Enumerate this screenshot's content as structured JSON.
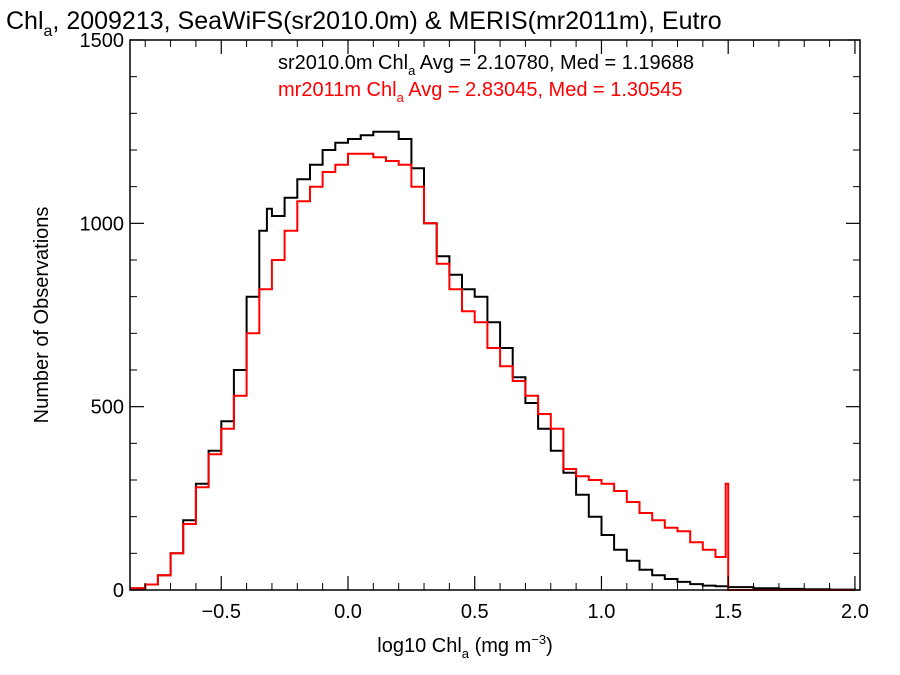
{
  "chart_data": {
    "type": "line",
    "title": {
      "pre": "Chl",
      "sub": "a",
      "post": ", 2009213, SeaWiFS(sr2010.0m) & MERIS(mr2011m), Eutro"
    },
    "xlabel": {
      "pre": "log10 Chl",
      "sub": "a",
      "mid": " (mg m",
      "sup": "−3",
      "post": ")"
    },
    "ylabel": "Number of Observations",
    "xlim": [
      -0.86,
      2.02
    ],
    "ylim": [
      0,
      1500
    ],
    "x_ticks": [
      {
        "value": -0.5,
        "label": "−0.5"
      },
      {
        "value": 0.0,
        "label": "0.0"
      },
      {
        "value": 0.5,
        "label": "0.5"
      },
      {
        "value": 1.0,
        "label": "1.0"
      },
      {
        "value": 1.5,
        "label": "1.5"
      },
      {
        "value": 2.0,
        "label": "2.0"
      }
    ],
    "y_ticks": [
      {
        "value": 0,
        "label": "0"
      },
      {
        "value": 500,
        "label": "500"
      },
      {
        "value": 1000,
        "label": "1000"
      },
      {
        "value": 1500,
        "label": "1500"
      }
    ],
    "grid": false,
    "legend": "top-right (text annotations)",
    "annotations": [
      {
        "color": "#000000",
        "pre": "sr2010.0m Chl",
        "sub": "a",
        "post": " Avg = 2.10780, Med = 1.19688"
      },
      {
        "color": "#ff0000",
        "pre": "mr2011m Chl",
        "sub": "a",
        "post": " Avg = 2.83045, Med = 1.30545"
      }
    ],
    "series": [
      {
        "color": "#000000",
        "style": "step",
        "x": [
          -0.86,
          -0.8,
          -0.75,
          -0.7,
          -0.65,
          -0.6,
          -0.55,
          -0.5,
          -0.45,
          -0.4,
          -0.35,
          -0.32,
          -0.3,
          -0.25,
          -0.2,
          -0.15,
          -0.1,
          -0.05,
          0.0,
          0.05,
          0.1,
          0.15,
          0.2,
          0.25,
          0.3,
          0.35,
          0.4,
          0.45,
          0.5,
          0.55,
          0.6,
          0.65,
          0.7,
          0.75,
          0.8,
          0.85,
          0.9,
          0.95,
          1.0,
          1.05,
          1.1,
          1.15,
          1.2,
          1.25,
          1.3,
          1.35,
          1.4,
          1.45,
          1.5,
          1.6,
          1.7,
          1.8,
          1.9,
          2.0
        ],
        "y": [
          5,
          15,
          40,
          100,
          190,
          290,
          380,
          460,
          600,
          800,
          980,
          1040,
          1020,
          1070,
          1120,
          1160,
          1200,
          1220,
          1230,
          1240,
          1250,
          1250,
          1230,
          1150,
          1000,
          910,
          860,
          820,
          800,
          730,
          660,
          580,
          510,
          440,
          380,
          320,
          260,
          200,
          150,
          110,
          80,
          55,
          40,
          30,
          22,
          16,
          12,
          10,
          8,
          5,
          3,
          2,
          1,
          0
        ]
      },
      {
        "color": "#ff0000",
        "style": "step",
        "x": [
          -0.86,
          -0.8,
          -0.75,
          -0.7,
          -0.65,
          -0.6,
          -0.55,
          -0.5,
          -0.45,
          -0.4,
          -0.35,
          -0.3,
          -0.25,
          -0.2,
          -0.15,
          -0.1,
          -0.05,
          0.0,
          0.05,
          0.1,
          0.15,
          0.2,
          0.25,
          0.3,
          0.35,
          0.4,
          0.45,
          0.5,
          0.55,
          0.6,
          0.65,
          0.7,
          0.75,
          0.8,
          0.85,
          0.9,
          0.95,
          1.0,
          1.05,
          1.1,
          1.15,
          1.2,
          1.25,
          1.3,
          1.35,
          1.4,
          1.45,
          1.49,
          1.5,
          1.6,
          1.7,
          1.8,
          1.9,
          2.0
        ],
        "y": [
          5,
          15,
          40,
          100,
          180,
          280,
          370,
          440,
          530,
          700,
          820,
          900,
          980,
          1060,
          1100,
          1140,
          1160,
          1190,
          1190,
          1180,
          1170,
          1160,
          1100,
          1000,
          890,
          820,
          760,
          730,
          660,
          610,
          570,
          530,
          480,
          440,
          330,
          310,
          300,
          290,
          270,
          240,
          210,
          190,
          170,
          160,
          130,
          110,
          90,
          290,
          0,
          0,
          0,
          0,
          0,
          0
        ]
      }
    ]
  }
}
